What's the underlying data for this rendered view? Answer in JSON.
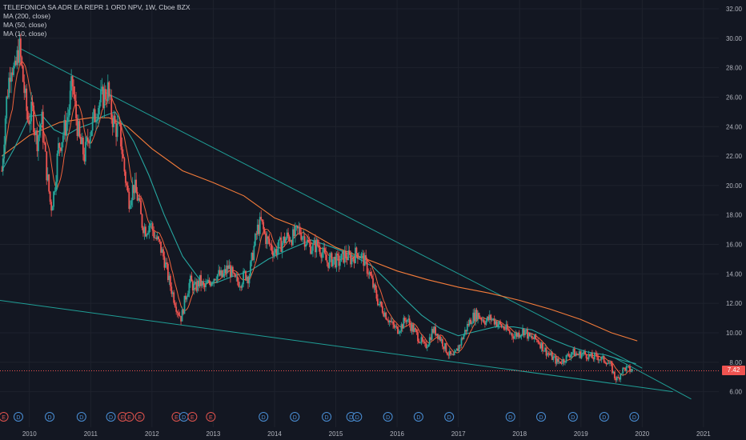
{
  "legend": {
    "symbol": "TELEFONICA SA ADR EA REPR 1 ORD NPV, 1W, Cboe BZX",
    "ma200": "MA (200, close)",
    "ma50": "MA (50, close)",
    "ma10": "MA (10, close)"
  },
  "colors": {
    "background": "#131722",
    "grid": "#1e222d",
    "up": "#26a69a",
    "down": "#ef5350",
    "ma200": "#f57c3a",
    "ma50": "#26a6a0",
    "ma10": "#f0623c",
    "trendline": "#1f9e96",
    "axis_text": "#b2b5be",
    "event_circle": "#4a8fd6",
    "earnings_circle": "#e0534e"
  },
  "chart_data": {
    "type": "candlestick",
    "title": "TELEFONICA SA ADR EA REPR 1 ORD NPV, 1W, Cboe BZX",
    "x_ticks": [
      "2010",
      "2011",
      "2012",
      "2013",
      "2014",
      "2015",
      "2016",
      "2017",
      "2018",
      "2019",
      "2020",
      "2021"
    ],
    "x_tick_values": [
      2010,
      2011,
      2012,
      2013,
      2014,
      2015,
      2016,
      2017,
      2018,
      2019,
      2020,
      2021
    ],
    "y_ticks": [
      "6.00",
      "8.00",
      "10.00",
      "12.00",
      "14.00",
      "16.00",
      "18.00",
      "20.00",
      "22.00",
      "24.00",
      "26.00",
      "28.00",
      "30.00",
      "32.00"
    ],
    "ylim": [
      5.0,
      32.6
    ],
    "xlim": [
      2009.52,
      2021.25
    ],
    "last_price": "7.42",
    "price_path": [
      [
        2009.55,
        21.0
      ],
      [
        2009.62,
        25.5
      ],
      [
        2009.7,
        28.5
      ],
      [
        2009.76,
        27.5
      ],
      [
        2009.83,
        29.5
      ],
      [
        2009.9,
        27.0
      ],
      [
        2009.97,
        24.5
      ],
      [
        2010.05,
        25.0
      ],
      [
        2010.12,
        23.0
      ],
      [
        2010.2,
        24.5
      ],
      [
        2010.28,
        21.0
      ],
      [
        2010.35,
        18.5
      ],
      [
        2010.4,
        19.5
      ],
      [
        2010.47,
        22.5
      ],
      [
        2010.55,
        23.5
      ],
      [
        2010.62,
        24.5
      ],
      [
        2010.7,
        27.0
      ],
      [
        2010.75,
        25.0
      ],
      [
        2010.82,
        23.0
      ],
      [
        2010.9,
        22.0
      ],
      [
        2010.97,
        23.5
      ],
      [
        2011.05,
        24.5
      ],
      [
        2011.12,
        25.5
      ],
      [
        2011.2,
        26.0
      ],
      [
        2011.28,
        26.5
      ],
      [
        2011.33,
        25.0
      ],
      [
        2011.4,
        24.0
      ],
      [
        2011.48,
        23.5
      ],
      [
        2011.55,
        21.0
      ],
      [
        2011.62,
        19.0
      ],
      [
        2011.7,
        20.0
      ],
      [
        2011.78,
        19.0
      ],
      [
        2011.83,
        17.5
      ],
      [
        2011.9,
        17.0
      ],
      [
        2011.97,
        17.5
      ],
      [
        2012.05,
        16.5
      ],
      [
        2012.12,
        16.0
      ],
      [
        2012.2,
        15.0
      ],
      [
        2012.28,
        13.5
      ],
      [
        2012.35,
        12.5
      ],
      [
        2012.42,
        11.5
      ],
      [
        2012.48,
        11.0
      ],
      [
        2012.55,
        12.5
      ],
      [
        2012.62,
        13.5
      ],
      [
        2012.7,
        13.0
      ],
      [
        2012.78,
        13.5
      ],
      [
        2012.85,
        13.0
      ],
      [
        2012.95,
        13.5
      ],
      [
        2013.05,
        14.0
      ],
      [
        2013.15,
        13.8
      ],
      [
        2013.25,
        14.5
      ],
      [
        2013.35,
        13.5
      ],
      [
        2013.45,
        13.5
      ],
      [
        2013.52,
        14.0
      ],
      [
        2013.58,
        13.8
      ],
      [
        2013.65,
        15.5
      ],
      [
        2013.72,
        17.0
      ],
      [
        2013.78,
        17.5
      ],
      [
        2013.85,
        16.5
      ],
      [
        2013.92,
        16.0
      ],
      [
        2014.0,
        15.5
      ],
      [
        2014.1,
        16.0
      ],
      [
        2014.2,
        16.5
      ],
      [
        2014.3,
        16.5
      ],
      [
        2014.4,
        17.0
      ],
      [
        2014.48,
        16.5
      ],
      [
        2014.55,
        16.0
      ],
      [
        2014.62,
        15.8
      ],
      [
        2014.7,
        16.0
      ],
      [
        2014.78,
        15.5
      ],
      [
        2014.85,
        14.8
      ],
      [
        2014.95,
        15.0
      ],
      [
        2015.05,
        14.8
      ],
      [
        2015.15,
        15.3
      ],
      [
        2015.25,
        15.0
      ],
      [
        2015.35,
        15.5
      ],
      [
        2015.45,
        15.0
      ],
      [
        2015.55,
        14.0
      ],
      [
        2015.62,
        13.0
      ],
      [
        2015.7,
        12.0
      ],
      [
        2015.78,
        11.5
      ],
      [
        2015.85,
        11.0
      ],
      [
        2015.92,
        10.5
      ],
      [
        2016.0,
        10.2
      ],
      [
        2016.08,
        10.5
      ],
      [
        2016.15,
        11.0
      ],
      [
        2016.22,
        10.5
      ],
      [
        2016.3,
        10.0
      ],
      [
        2016.38,
        9.5
      ],
      [
        2016.45,
        9.0
      ],
      [
        2016.52,
        9.5
      ],
      [
        2016.58,
        10.2
      ],
      [
        2016.65,
        10.0
      ],
      [
        2016.72,
        9.5
      ],
      [
        2016.78,
        9.0
      ],
      [
        2016.85,
        8.5
      ],
      [
        2016.92,
        8.3
      ],
      [
        2017.0,
        9.0
      ],
      [
        2017.08,
        9.8
      ],
      [
        2017.15,
        10.5
      ],
      [
        2017.22,
        11.0
      ],
      [
        2017.3,
        11.3
      ],
      [
        2017.38,
        11.0
      ],
      [
        2017.45,
        10.8
      ],
      [
        2017.52,
        11.0
      ],
      [
        2017.6,
        10.8
      ],
      [
        2017.68,
        10.5
      ],
      [
        2017.76,
        10.3
      ],
      [
        2017.84,
        10.0
      ],
      [
        2017.92,
        9.8
      ],
      [
        2018.0,
        10.0
      ],
      [
        2018.08,
        10.2
      ],
      [
        2018.15,
        9.7
      ],
      [
        2018.22,
        9.6
      ],
      [
        2018.3,
        9.5
      ],
      [
        2018.38,
        9.0
      ],
      [
        2018.46,
        8.6
      ],
      [
        2018.54,
        8.3
      ],
      [
        2018.62,
        8.0
      ],
      [
        2018.7,
        8.1
      ],
      [
        2018.78,
        8.4
      ],
      [
        2018.86,
        8.7
      ],
      [
        2018.94,
        8.5
      ],
      [
        2019.02,
        8.6
      ],
      [
        2019.1,
        8.5
      ],
      [
        2019.18,
        8.3
      ],
      [
        2019.26,
        8.4
      ],
      [
        2019.34,
        8.2
      ],
      [
        2019.42,
        8.1
      ],
      [
        2019.5,
        7.6
      ],
      [
        2019.55,
        7.0
      ],
      [
        2019.6,
        6.8
      ],
      [
        2019.66,
        7.4
      ],
      [
        2019.72,
        7.6
      ],
      [
        2019.78,
        7.5
      ],
      [
        2019.85,
        7.42
      ]
    ],
    "series": [
      {
        "name": "MA (200, close)",
        "points": [
          [
            2009.55,
            22.0
          ],
          [
            2010.0,
            23.4
          ],
          [
            2010.5,
            24.3
          ],
          [
            2011.0,
            24.6
          ],
          [
            2011.3,
            24.6
          ],
          [
            2011.6,
            24.0
          ],
          [
            2012.0,
            22.5
          ],
          [
            2012.5,
            21.0
          ],
          [
            2013.0,
            20.2
          ],
          [
            2013.5,
            19.3
          ],
          [
            2014.0,
            17.8
          ],
          [
            2014.5,
            17.0
          ],
          [
            2015.0,
            15.8
          ],
          [
            2015.5,
            15.0
          ],
          [
            2016.0,
            14.2
          ],
          [
            2016.5,
            13.6
          ],
          [
            2017.0,
            13.1
          ],
          [
            2017.5,
            12.7
          ],
          [
            2018.0,
            12.2
          ],
          [
            2018.5,
            11.6
          ],
          [
            2019.0,
            10.9
          ],
          [
            2019.5,
            10.0
          ],
          [
            2019.92,
            9.45
          ]
        ]
      },
      {
        "name": "MA (50, close)",
        "points": [
          [
            2009.55,
            21.0
          ],
          [
            2009.75,
            22.5
          ],
          [
            2010.0,
            24.7
          ],
          [
            2010.2,
            24.8
          ],
          [
            2010.4,
            23.8
          ],
          [
            2010.6,
            23.4
          ],
          [
            2010.8,
            23.9
          ],
          [
            2011.0,
            24.2
          ],
          [
            2011.2,
            24.7
          ],
          [
            2011.4,
            25.0
          ],
          [
            2011.7,
            23.0
          ],
          [
            2011.95,
            20.7
          ],
          [
            2012.2,
            18.0
          ],
          [
            2012.5,
            15.2
          ],
          [
            2012.8,
            13.5
          ],
          [
            2013.05,
            13.4
          ],
          [
            2013.3,
            13.8
          ],
          [
            2013.6,
            14.2
          ],
          [
            2013.9,
            15.0
          ],
          [
            2014.2,
            15.6
          ],
          [
            2014.6,
            16.3
          ],
          [
            2014.95,
            15.8
          ],
          [
            2015.3,
            15.2
          ],
          [
            2015.6,
            14.5
          ],
          [
            2015.85,
            13.5
          ],
          [
            2016.1,
            12.4
          ],
          [
            2016.4,
            11.2
          ],
          [
            2016.7,
            10.3
          ],
          [
            2017.0,
            9.8
          ],
          [
            2017.3,
            10.1
          ],
          [
            2017.6,
            10.4
          ],
          [
            2017.9,
            10.4
          ],
          [
            2018.2,
            10.2
          ],
          [
            2018.5,
            9.6
          ],
          [
            2018.8,
            9.1
          ],
          [
            2019.1,
            8.7
          ],
          [
            2019.4,
            8.5
          ],
          [
            2019.7,
            8.1
          ],
          [
            2019.9,
            7.9
          ]
        ]
      }
    ],
    "trendlines": [
      {
        "from": [
          2009.85,
          29.3
        ],
        "to": [
          2020.0,
          7.6
        ]
      },
      {
        "from": [
          2009.52,
          12.2
        ],
        "to": [
          2020.5,
          6.0
        ]
      },
      {
        "from": [
          2019.55,
          8.3
        ],
        "to": [
          2020.8,
          5.5
        ]
      }
    ],
    "event_markers": [
      {
        "x": 2009.58,
        "label": "E",
        "kind": "earnings"
      },
      {
        "x": 2009.82,
        "label": "D",
        "kind": "dividend"
      },
      {
        "x": 2010.33,
        "label": "D",
        "kind": "dividend"
      },
      {
        "x": 2010.85,
        "label": "D",
        "kind": "dividend"
      },
      {
        "x": 2011.33,
        "label": "D",
        "kind": "dividend"
      },
      {
        "x": 2011.52,
        "label": "E",
        "kind": "earnings"
      },
      {
        "x": 2011.63,
        "label": "E",
        "kind": "earnings"
      },
      {
        "x": 2011.8,
        "label": "E",
        "kind": "earnings"
      },
      {
        "x": 2012.4,
        "label": "E",
        "kind": "earnings"
      },
      {
        "x": 2012.52,
        "label": "D",
        "kind": "dividend"
      },
      {
        "x": 2012.66,
        "label": "E",
        "kind": "earnings"
      },
      {
        "x": 2012.96,
        "label": "E",
        "kind": "earnings"
      },
      {
        "x": 2013.82,
        "label": "D",
        "kind": "dividend"
      },
      {
        "x": 2014.33,
        "label": "D",
        "kind": "dividend"
      },
      {
        "x": 2014.85,
        "label": "D",
        "kind": "dividend"
      },
      {
        "x": 2015.25,
        "label": "D",
        "kind": "dividend"
      },
      {
        "x": 2015.35,
        "label": "D",
        "kind": "dividend"
      },
      {
        "x": 2015.85,
        "label": "D",
        "kind": "dividend"
      },
      {
        "x": 2016.35,
        "label": "D",
        "kind": "dividend"
      },
      {
        "x": 2016.85,
        "label": "D",
        "kind": "dividend"
      },
      {
        "x": 2017.85,
        "label": "D",
        "kind": "dividend"
      },
      {
        "x": 2018.35,
        "label": "D",
        "kind": "dividend"
      },
      {
        "x": 2018.87,
        "label": "D",
        "kind": "dividend"
      },
      {
        "x": 2019.38,
        "label": "D",
        "kind": "dividend"
      },
      {
        "x": 2019.87,
        "label": "D",
        "kind": "dividend"
      }
    ]
  }
}
